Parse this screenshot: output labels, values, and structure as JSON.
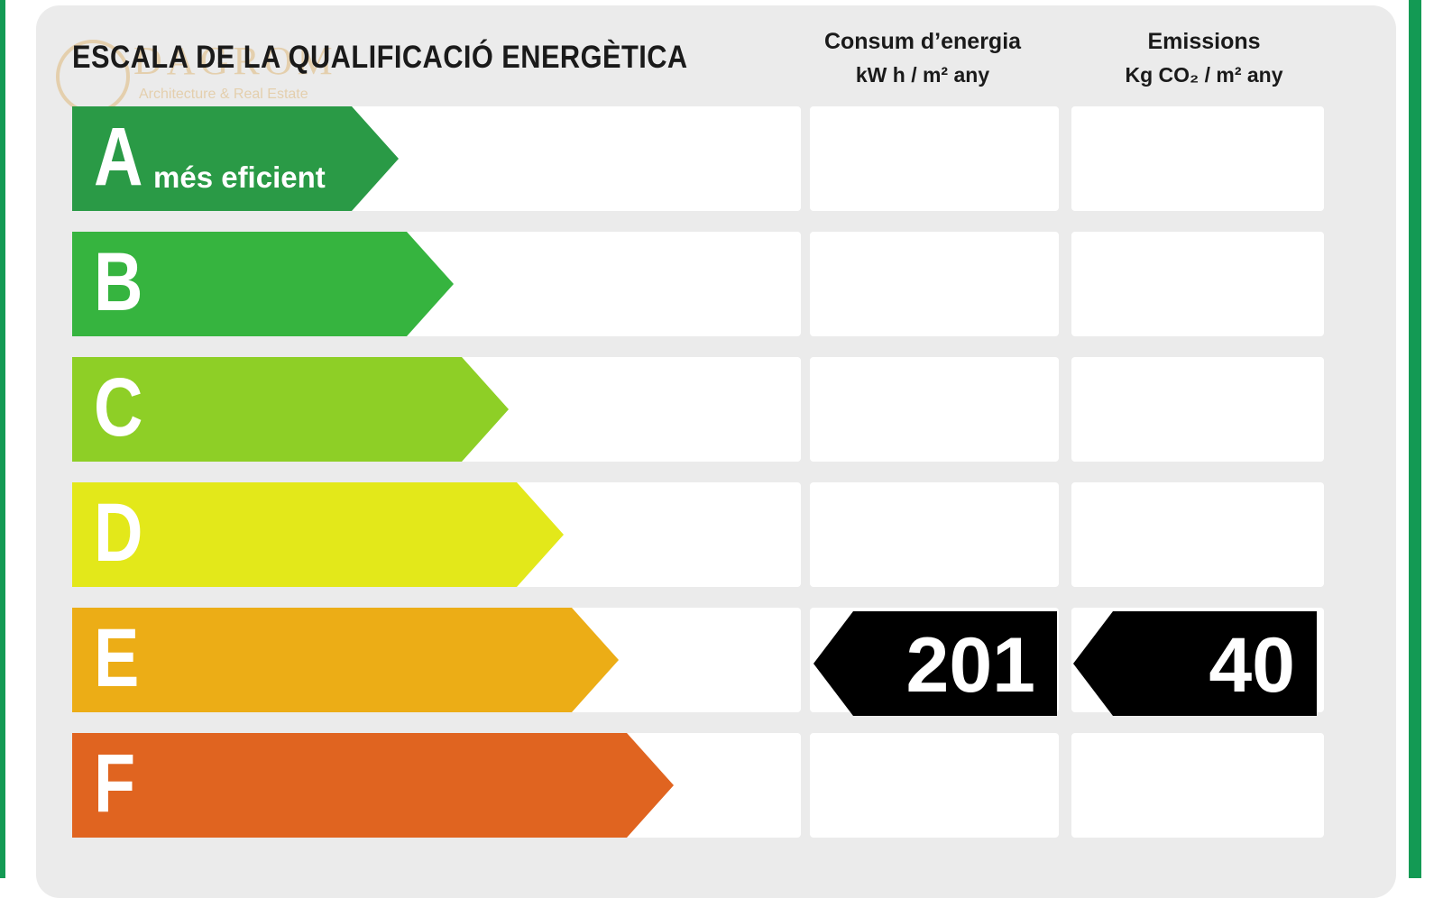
{
  "title": "ESCALA DE LA QUALIFICACIÓ ENERGÈTICA",
  "watermark": {
    "name": "DAGROM",
    "subtitle": "Architecture & Real Estate"
  },
  "columns": {
    "energy": {
      "line1": "Consum d’energia",
      "line2": "kW h / m² any"
    },
    "emissions": {
      "line1": "Emissions",
      "line2": "Kg CO₂ / m² any"
    }
  },
  "ratings": [
    {
      "letter": "A",
      "note": "més eficient",
      "color": "#2a9a46"
    },
    {
      "letter": "B",
      "note": "",
      "color": "#36b43f"
    },
    {
      "letter": "C",
      "note": "",
      "color": "#8ecf26"
    },
    {
      "letter": "D",
      "note": "",
      "color": "#e3e81a"
    },
    {
      "letter": "E",
      "note": "",
      "color": "#ecad16"
    },
    {
      "letter": "F",
      "note": "",
      "color": "#e06420"
    }
  ],
  "result": {
    "letter": "E",
    "energy_value": "201",
    "emissions_value": "40"
  },
  "colors": {
    "frame_green": "#139a54",
    "panel_gray": "#ebebeb",
    "badge_black": "#000000"
  }
}
